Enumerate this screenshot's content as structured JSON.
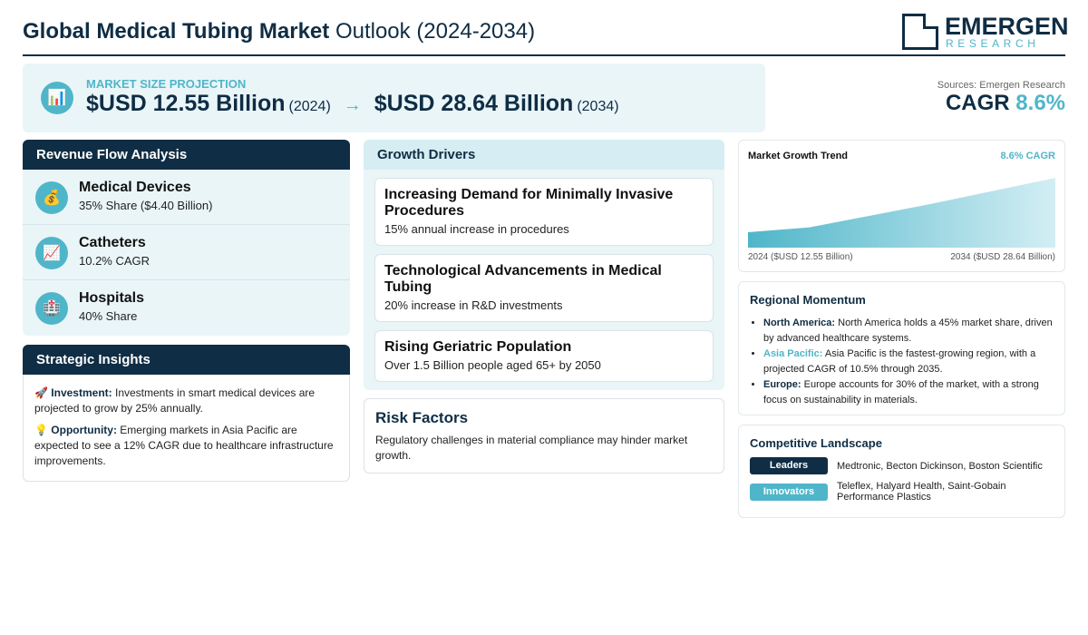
{
  "header": {
    "title_bold": "Global Medical Tubing Market",
    "title_rest": "Outlook (2024-2034)",
    "logo_name": "EMERGEN",
    "logo_sub": "RESEARCH"
  },
  "projection": {
    "icon": "chart-icon",
    "label": "MARKET SIZE PROJECTION",
    "start_value": "$USD 12.55 Billion",
    "start_year": "(2024)",
    "arrow": "→",
    "end_value": "$USD 28.64 Billion",
    "end_year": "(2034)"
  },
  "summary": {
    "sources": "Sources: Emergen Research",
    "cagr_label": "CAGR",
    "cagr_value": "8.6%"
  },
  "revenue": {
    "heading": "Revenue Flow Analysis",
    "items": [
      {
        "icon": "money-bag-icon",
        "glyph": "💰",
        "title": "Medical Devices",
        "sub": "35% Share ($4.40 Billion)"
      },
      {
        "icon": "trend-up-icon",
        "glyph": "📈",
        "title": "Catheters",
        "sub": "10.2% CAGR"
      },
      {
        "icon": "hospital-icon",
        "glyph": "🏥",
        "title": "Hospitals",
        "sub": "40% Share"
      }
    ]
  },
  "insights": {
    "heading": "Strategic Insights",
    "items": [
      {
        "glyph": "🚀",
        "label": "Investment:",
        "text": "Investments in smart medical devices are projected to grow by 25% annually."
      },
      {
        "glyph": "💡",
        "label": "Opportunity:",
        "text": "Emerging markets in Asia Pacific are expected to see a 12% CAGR due to healthcare infrastructure improvements."
      }
    ]
  },
  "drivers": {
    "heading": "Growth Drivers",
    "items": [
      {
        "title": "Increasing Demand for Minimally Invasive Procedures",
        "sub": "15% annual increase in procedures"
      },
      {
        "title": "Technological Advancements in Medical Tubing",
        "sub": "20% increase in R&D investments"
      },
      {
        "title": "Rising Geriatric Population",
        "sub": "Over 1.5 Billion people aged 65+ by 2050"
      }
    ]
  },
  "risk": {
    "heading": "Risk Factors",
    "text": "Regulatory challenges in material compliance may hinder market growth."
  },
  "trend": {
    "title": "Market Growth Trend",
    "cagr": "8.6% CAGR",
    "start_label": "2024 ($USD 12.55 Billion)",
    "end_label": "2034 ($USD 28.64 Billion)"
  },
  "chart_data": {
    "type": "area",
    "title": "Market Growth Trend",
    "x": [
      2024,
      2026,
      2030,
      2034
    ],
    "values": [
      12.55,
      14.0,
      21.0,
      28.64
    ],
    "xlabel": "",
    "ylabel": "",
    "grid": false,
    "color": "#4fb6c9"
  },
  "regional": {
    "heading": "Regional Momentum",
    "items": [
      {
        "label": "North America:",
        "accent": false,
        "text": "North America holds a 45% market share, driven by advanced healthcare systems."
      },
      {
        "label": "Asia Pacific:",
        "accent": true,
        "text": "Asia Pacific is the fastest-growing region, with a projected CAGR of 10.5% through 2035."
      },
      {
        "label": "Europe:",
        "accent": false,
        "text": "Europe accounts for 30% of the market, with a strong focus on sustainability in materials."
      }
    ]
  },
  "competitive": {
    "heading": "Competitive Landscape",
    "leaders_label": "Leaders",
    "leaders_text": "Medtronic, Becton Dickinson, Boston Scientific",
    "innovators_label": "Innovators",
    "innovators_text": "Teleflex, Halyard Health, Saint-Gobain Performance Plastics"
  },
  "colors": {
    "navy": "#0f2d44",
    "teal": "#4fb6c9",
    "panel_bg": "#eaf5f8"
  }
}
